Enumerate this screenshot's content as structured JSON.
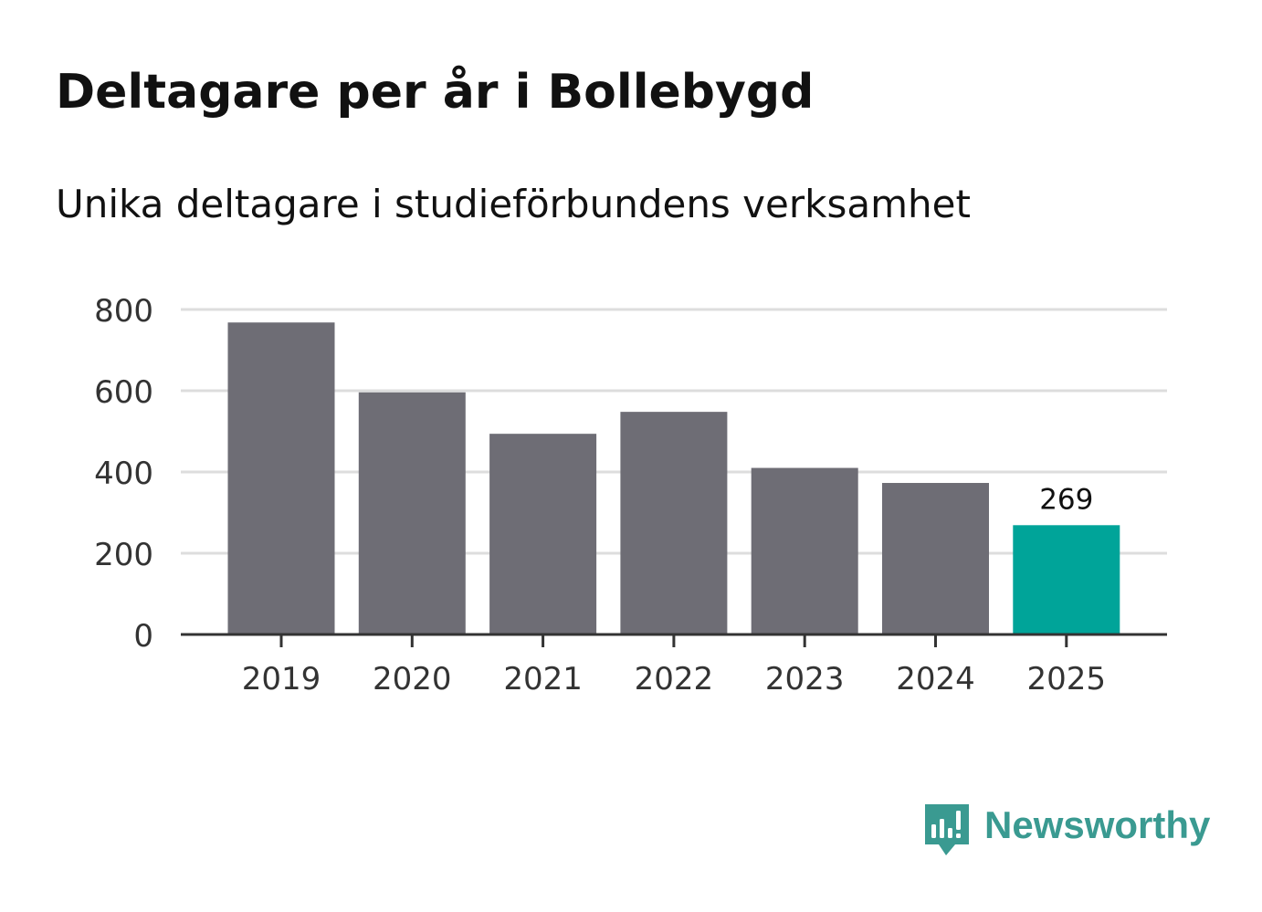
{
  "header": {
    "title": "Deltagare per år i Bollebygd",
    "subtitle": "Unika deltagare i studieförbundens verksamhet"
  },
  "chart_data": {
    "type": "bar",
    "categories": [
      "2019",
      "2020",
      "2021",
      "2022",
      "2023",
      "2024",
      "2025"
    ],
    "values": [
      768,
      596,
      494,
      548,
      410,
      373,
      269
    ],
    "ylim": [
      0,
      800
    ],
    "yticks": [
      "0",
      "200",
      "400",
      "600",
      "800"
    ],
    "grid": true,
    "highlight": {
      "category": "2025",
      "label": "269"
    },
    "colors": {
      "bar": "#6e6d75",
      "highlight": "#00a499",
      "grid": "#dddddd",
      "axis": "#333333"
    }
  },
  "branding": {
    "name": "Newsworthy",
    "icon": "newsworthy-logo-icon",
    "color": "#3a9a91"
  }
}
